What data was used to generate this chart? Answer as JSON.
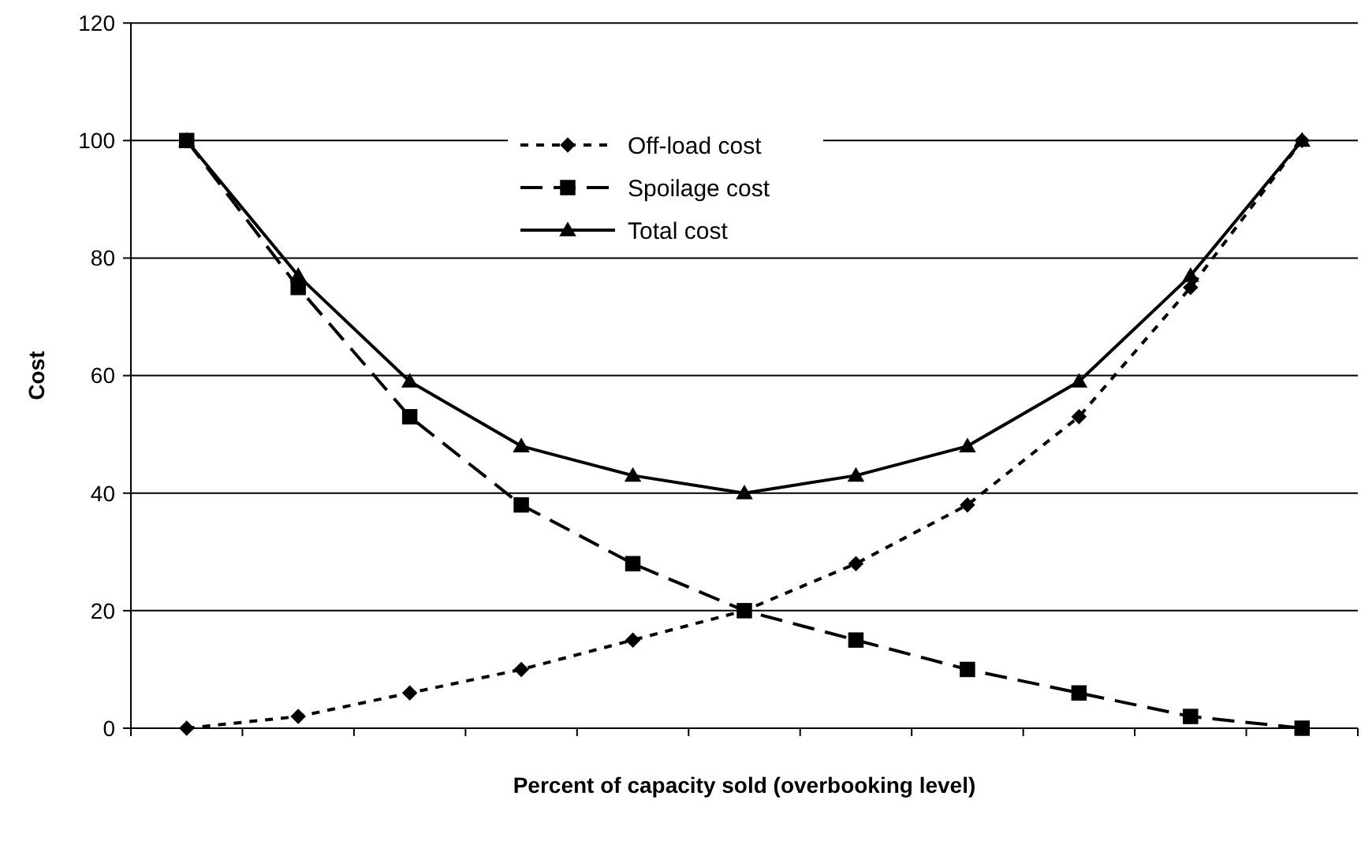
{
  "chart_data": {
    "type": "line",
    "xlabel": "Percent of capacity sold (overbooking level)",
    "ylabel": "Cost",
    "categories": [
      null,
      null,
      null,
      null,
      null,
      null,
      null,
      null,
      null,
      null,
      null
    ],
    "ylim": [
      0,
      120
    ],
    "yticks": [
      0,
      20,
      40,
      60,
      80,
      100,
      120
    ],
    "grid": "y",
    "legend": "top",
    "series": [
      {
        "name": "Off-load cost",
        "color": "#000000",
        "marker": "diamond",
        "line_style": "dotted",
        "values": [
          0,
          2,
          6,
          10,
          15,
          20,
          28,
          38,
          53,
          75,
          100
        ]
      },
      {
        "name": "Spoilage cost",
        "color": "#000000",
        "marker": "square",
        "line_style": "dashed",
        "values": [
          100,
          75,
          53,
          38,
          28,
          20,
          15,
          10,
          6,
          2,
          0
        ]
      },
      {
        "name": "Total cost",
        "color": "#000000",
        "marker": "triangle",
        "line_style": "solid",
        "values": [
          100,
          77,
          59,
          48,
          43,
          40,
          43,
          48,
          59,
          77,
          100
        ]
      }
    ]
  }
}
